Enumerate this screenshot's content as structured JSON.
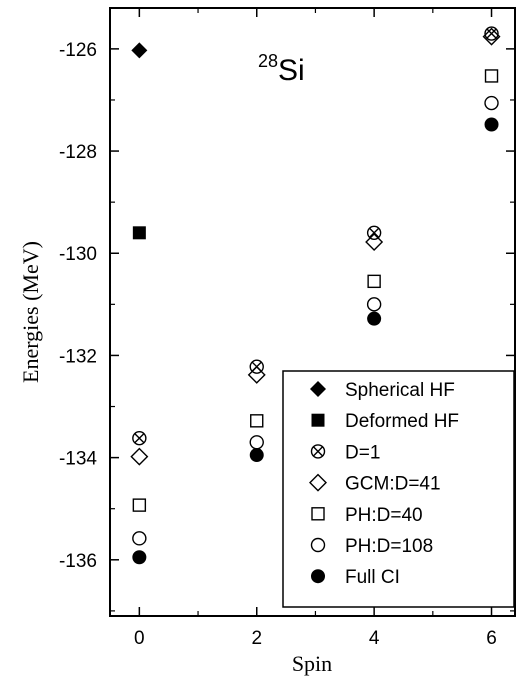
{
  "chart_data": {
    "type": "scatter",
    "title": "",
    "annotation": {
      "superscript": "28",
      "text": "Si"
    },
    "xlabel": "Spin",
    "ylabel": "Energies (MeV)",
    "xlim": [
      -0.5,
      6.4
    ],
    "ylim": [
      -137.1,
      -125.2
    ],
    "xticks": [
      0,
      2,
      4,
      6
    ],
    "yticks": [
      -126,
      -128,
      -130,
      -132,
      -134,
      -136
    ],
    "grid": false,
    "legend_position": "bottom-right",
    "series": [
      {
        "name": "Spherical HF",
        "marker": "filled-diamond",
        "x": [
          0
        ],
        "y": [
          -126.03
        ]
      },
      {
        "name": "Deformed HF",
        "marker": "filled-square",
        "x": [
          0
        ],
        "y": [
          -129.6
        ]
      },
      {
        "name": "D=1",
        "marker": "crossed-circle",
        "x": [
          0,
          2,
          4,
          6
        ],
        "y": [
          -133.62,
          -132.22,
          -129.6,
          -125.7
        ]
      },
      {
        "name": "GCM:D=41",
        "marker": "open-diamond",
        "x": [
          0,
          2,
          4,
          6
        ],
        "y": [
          -133.98,
          -132.38,
          -129.78,
          -125.76
        ]
      },
      {
        "name": "PH:D=40",
        "marker": "open-square",
        "x": [
          0,
          2,
          4,
          6
        ],
        "y": [
          -134.93,
          -133.28,
          -130.55,
          -126.53
        ]
      },
      {
        "name": "PH:D=108",
        "marker": "open-circle",
        "x": [
          0,
          2,
          4,
          6
        ],
        "y": [
          -135.58,
          -133.7,
          -131.0,
          -127.06
        ]
      },
      {
        "name": "Full CI",
        "marker": "filled-circle",
        "x": [
          0,
          2,
          4,
          6
        ],
        "y": [
          -135.95,
          -133.95,
          -131.28,
          -127.48
        ]
      }
    ]
  }
}
